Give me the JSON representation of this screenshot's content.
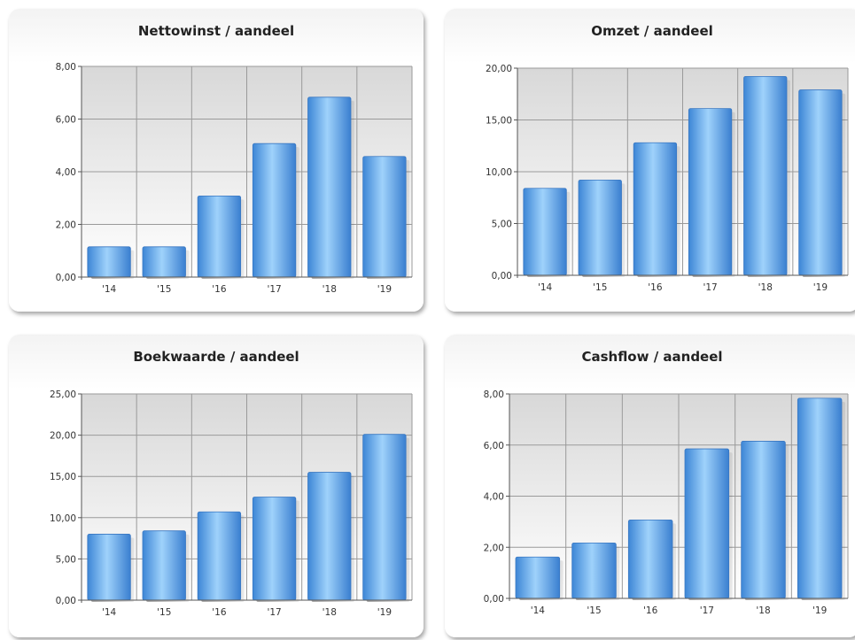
{
  "chart_data": [
    {
      "type": "bar",
      "title": "Nettowinst / aandeel",
      "categories": [
        "'14",
        "'15",
        "'16",
        "'17",
        "'18",
        "'19"
      ],
      "values": [
        1.15,
        1.15,
        3.08,
        5.07,
        6.83,
        4.58
      ],
      "ylim": [
        0,
        8
      ],
      "yticks": [
        "0,00",
        "2,00",
        "4,00",
        "6,00",
        "8,00"
      ],
      "grid": true
    },
    {
      "type": "bar",
      "title": "Omzet / aandeel",
      "categories": [
        "'14",
        "'15",
        "'16",
        "'17",
        "'18",
        "'19"
      ],
      "values": [
        8.4,
        9.2,
        12.8,
        16.1,
        19.2,
        17.9
      ],
      "ylim": [
        0,
        20
      ],
      "yticks": [
        "0,00",
        "5,00",
        "10,00",
        "15,00",
        "20,00"
      ],
      "grid": true
    },
    {
      "type": "bar",
      "title": "Boekwaarde / aandeel",
      "categories": [
        "'14",
        "'15",
        "'16",
        "'17",
        "'18",
        "'19"
      ],
      "values": [
        8.0,
        8.4,
        10.7,
        12.5,
        15.5,
        20.1
      ],
      "ylim": [
        0,
        25
      ],
      "yticks": [
        "0,00",
        "5,00",
        "10,00",
        "15,00",
        "20,00",
        "25,00"
      ],
      "grid": true
    },
    {
      "type": "bar",
      "title": "Cashflow / aandeel",
      "categories": [
        "'14",
        "'15",
        "'16",
        "'17",
        "'18",
        "'19"
      ],
      "values": [
        1.62,
        2.17,
        3.07,
        5.85,
        6.15,
        7.83
      ],
      "ylim": [
        0,
        8
      ],
      "yticks": [
        "0,00",
        "2,00",
        "4,00",
        "6,00",
        "8,00"
      ],
      "grid": true
    }
  ]
}
